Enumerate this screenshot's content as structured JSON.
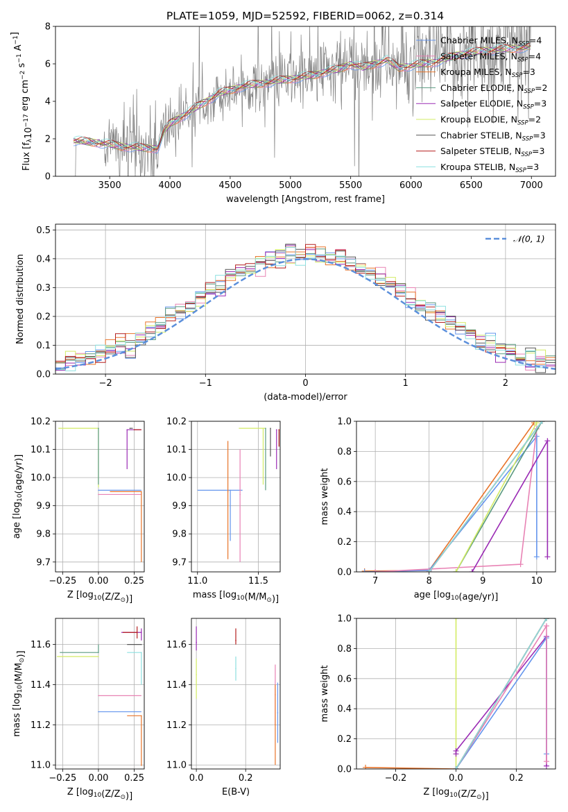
{
  "figure_title": "PLATE=1059, MJD=52592, FIBERID=0062, z=0.314",
  "legend_sub": "SSP",
  "colors": {
    "Chabrier MILES": "#6495ED",
    "Salpeter MILES": "#E882B4",
    "Kroupa MILES": "#E8742A",
    "Chabrier ELODIE": "#5A9A80",
    "Salpeter ELODIE": "#9A2AB4",
    "Kroupa ELODIE": "#D2EB64",
    "Chabrier STELIB": "#555555",
    "Salpeter STELIB": "#B41E1E",
    "Kroupa STELIB": "#8CE0E0",
    "gaussian": "#5B8FDB"
  },
  "chart_data": [
    {
      "id": "spectrum",
      "type": "line",
      "title": "PLATE=1059, MJD=52592, FIBERID=0062, z=0.314",
      "xlabel": "wavelength [Angstrom, rest frame]",
      "ylabel_parts": [
        "Flux [f",
        "λ",
        "10",
        "−17",
        " erg cm",
        "−2",
        " s",
        "−1",
        " A",
        "−1",
        "]"
      ],
      "xlim": [
        3050,
        7200
      ],
      "ylim": [
        0,
        8
      ],
      "xticks": [
        3500,
        4000,
        4500,
        5000,
        5500,
        6000,
        6500,
        7000
      ],
      "yticks": [
        0,
        2,
        4,
        6,
        8
      ],
      "grid": false,
      "legend_position": "top-right",
      "series": [
        {
          "name": "Chabrier MILES",
          "nssp": "4"
        },
        {
          "name": "Salpeter MILES",
          "nssp": "4"
        },
        {
          "name": "Kroupa MILES",
          "nssp": "3"
        },
        {
          "name": "Chabrier ELODIE",
          "nssp": "2"
        },
        {
          "name": "Salpeter ELODIE",
          "nssp": "3"
        },
        {
          "name": "Kroupa ELODIE",
          "nssp": "2"
        },
        {
          "name": "Chabrier STELIB",
          "nssp": "3"
        },
        {
          "name": "Salpeter STELIB",
          "nssp": "3"
        },
        {
          "name": "Kroupa STELIB",
          "nssp": "3"
        }
      ],
      "model_anchor_points": {
        "x": [
          3200,
          3400,
          3600,
          3800,
          3900,
          3950,
          4000,
          4100,
          4200,
          4300,
          4400,
          4500,
          4600,
          4700,
          4800,
          4900,
          5000,
          5100,
          5200,
          5300,
          5400,
          5500,
          5600,
          5700,
          5800,
          5900,
          6000,
          6100,
          6200,
          6300,
          6400,
          6500,
          6600,
          6800,
          7000
        ],
        "y": [
          1.9,
          1.8,
          1.6,
          1.5,
          1.5,
          2.4,
          2.8,
          3.2,
          3.6,
          4.0,
          4.4,
          4.6,
          4.8,
          4.9,
          5.0,
          5.1,
          5.2,
          5.3,
          5.4,
          5.6,
          5.7,
          6.0,
          5.8,
          6.0,
          6.2,
          5.8,
          5.9,
          6.0,
          6.1,
          6.3,
          6.5,
          6.6,
          6.7,
          6.8,
          6.9
        ]
      }
    },
    {
      "id": "residuals",
      "type": "line",
      "xlabel": "(data-model)/error",
      "ylabel": "Normed distribution",
      "xlim": [
        -2.5,
        2.5
      ],
      "ylim": [
        0,
        0.52
      ],
      "xticks": [
        -2,
        -1,
        0,
        1,
        2
      ],
      "yticks": [
        0.0,
        0.1,
        0.2,
        0.3,
        0.4,
        0.5
      ],
      "grid": true,
      "legend_position": "top-right",
      "legend": "𝒩(0, 1)",
      "bin_width": 0.1
    },
    {
      "id": "age-vs-Z",
      "type": "scatter",
      "xlabel_parts": [
        "Z [log",
        "10",
        "(Z/Z",
        "⊙",
        ")]"
      ],
      "ylabel_parts": [
        "age  [log",
        "10",
        "(age/yr)]"
      ],
      "xlim": [
        -0.3,
        0.32
      ],
      "ylim": [
        9.665,
        10.2
      ],
      "xticks": [
        -0.25,
        0.0,
        0.25
      ],
      "yticks": [
        9.7,
        9.8,
        9.9,
        10.0,
        10.1,
        10.2
      ],
      "grid": true,
      "points": [
        {
          "series": "Kroupa ELODIE",
          "x": 0.0,
          "y": 10.175,
          "xerr": [
            0.28,
            0.0
          ],
          "yerr": [
            0.21,
            0.0
          ]
        },
        {
          "series": "Chabrier ELODIE",
          "x": 0.0,
          "y": 10.175,
          "xerr": [
            0.0,
            0.0
          ],
          "yerr": [
            0.2,
            0.0
          ]
        },
        {
          "series": "Chabrier STELIB",
          "x": 0.22,
          "y": 10.175,
          "xerr": [
            0.0,
            0.02
          ],
          "yerr": [
            0.0,
            0.0
          ]
        },
        {
          "series": "Salpeter ELODIE",
          "x": 0.2,
          "y": 10.17,
          "xerr": [
            0.0,
            0.1
          ],
          "yerr": [
            0.14,
            0.0
          ]
        },
        {
          "series": "Salpeter STELIB",
          "x": 0.25,
          "y": 10.17,
          "xerr": [
            0.0,
            0.05
          ],
          "yerr": [
            0.0,
            0.0
          ]
        },
        {
          "series": "Chabrier MILES",
          "x": 0.0,
          "y": 9.955,
          "xerr": [
            0.0,
            0.3
          ],
          "yerr": [
            0.0,
            0.0
          ]
        },
        {
          "series": "Salpeter MILES",
          "x": 0.0,
          "y": 9.94,
          "xerr": [
            0.0,
            0.3
          ],
          "yerr": [
            0.0,
            0.0
          ]
        },
        {
          "series": "Kroupa MILES",
          "x": 0.3,
          "y": 9.95,
          "xerr": [
            0.22,
            0.0
          ],
          "yerr": [
            0.25,
            0.0
          ]
        }
      ]
    },
    {
      "id": "age-vs-mass",
      "type": "scatter",
      "xlabel_parts": [
        "mass [log",
        "10",
        "(M/M",
        "⊙",
        ")]"
      ],
      "xlim": [
        10.95,
        11.68
      ],
      "ylim": [
        9.665,
        10.2
      ],
      "xticks": [
        11.0,
        11.5
      ],
      "yticks": [
        9.7,
        9.8,
        9.9,
        10.0,
        10.1,
        10.2
      ],
      "grid": true,
      "points": [
        {
          "series": "Chabrier MILES",
          "x": 11.27,
          "y": 9.955,
          "xerr": [
            0.27,
            0.1
          ],
          "yerr": [
            0.18,
            0.0
          ]
        },
        {
          "series": "Salpeter MILES",
          "x": 11.35,
          "y": 9.94,
          "xerr": [
            0.0,
            0.0
          ],
          "yerr": [
            0.24,
            0.16
          ]
        },
        {
          "series": "Kroupa MILES",
          "x": 11.25,
          "y": 9.95,
          "xerr": [
            0.0,
            0.0
          ],
          "yerr": [
            0.24,
            0.18
          ]
        },
        {
          "series": "Kroupa ELODIE",
          "x": 11.54,
          "y": 10.175,
          "xerr": [
            0.2,
            0.02
          ],
          "yerr": [
            0.2,
            0.0
          ]
        },
        {
          "series": "Chabrier ELODIE",
          "x": 11.56,
          "y": 10.175,
          "xerr": [
            0.0,
            0.0
          ],
          "yerr": [
            0.22,
            0.0
          ]
        },
        {
          "series": "Salpeter ELODIE",
          "x": 11.65,
          "y": 10.17,
          "xerr": [
            0.0,
            0.0
          ],
          "yerr": [
            0.14,
            0.0
          ]
        },
        {
          "series": "Chabrier STELIB",
          "x": 11.6,
          "y": 10.175,
          "xerr": [
            0.0,
            0.0
          ],
          "yerr": [
            0.1,
            0.0
          ]
        },
        {
          "series": "Salpeter STELIB",
          "x": 11.67,
          "y": 10.17,
          "xerr": [
            0.0,
            0.0
          ],
          "yerr": [
            0.06,
            0.0
          ]
        }
      ]
    },
    {
      "id": "weight-vs-age",
      "type": "line",
      "xlabel_parts": [
        "age  [log",
        "10",
        "(age/yr)]"
      ],
      "ylabel": "mass weight",
      "xlim": [
        6.65,
        10.35
      ],
      "ylim": [
        0,
        1
      ],
      "xticks": [
        7,
        8,
        9,
        10
      ],
      "yticks": [
        0.0,
        0.2,
        0.4,
        0.6,
        0.8,
        1.0
      ],
      "grid": true,
      "series": [
        {
          "name": "Kroupa MILES",
          "x": [
            6.8,
            8.0,
            9.95
          ],
          "y": [
            0.005,
            0.01,
            0.99
          ]
        },
        {
          "name": "Chabrier MILES",
          "x": [
            6.8,
            8.0,
            10.0,
            10.0
          ],
          "y": [
            0.0,
            0.01,
            0.9,
            0.1
          ]
        },
        {
          "name": "Salpeter MILES",
          "x": [
            7.0,
            9.7,
            10.0
          ],
          "y": [
            0.0,
            0.05,
            0.95
          ]
        },
        {
          "name": "Chabrier ELODIE",
          "x": [
            8.5,
            10.1
          ],
          "y": [
            0.0,
            1.0
          ]
        },
        {
          "name": "Kroupa ELODIE",
          "x": [
            8.5,
            10.0
          ],
          "y": [
            0.0,
            0.99
          ]
        },
        {
          "name": "Salpeter ELODIE",
          "x": [
            8.8,
            10.2,
            10.2
          ],
          "y": [
            0.0,
            0.87,
            0.1
          ]
        },
        {
          "name": "Chabrier STELIB",
          "x": [
            8.0,
            10.1
          ],
          "y": [
            0.0,
            1.0
          ]
        },
        {
          "name": "Salpeter STELIB",
          "x": [
            8.0,
            10.1
          ],
          "y": [
            0.0,
            1.0
          ]
        },
        {
          "name": "Kroupa STELIB",
          "x": [
            8.0,
            10.1
          ],
          "y": [
            0.0,
            1.0
          ]
        }
      ]
    },
    {
      "id": "mass-vs-Z",
      "type": "scatter",
      "xlabel_parts": [
        "Z [log",
        "10",
        "(Z/Z",
        "⊙",
        ")]"
      ],
      "ylabel_parts": [
        "mass [log",
        "10",
        "(M/M",
        "⊙",
        ")]"
      ],
      "xlim": [
        -0.3,
        0.32
      ],
      "ylim": [
        10.98,
        11.73
      ],
      "xticks": [
        -0.25,
        0.0,
        0.25
      ],
      "yticks": [
        11.0,
        11.2,
        11.4,
        11.6
      ],
      "grid": true,
      "points": [
        {
          "series": "Chabrier MILES",
          "x": 0.0,
          "y": 11.265,
          "xerr": [
            0.0,
            0.3
          ],
          "yerr": [
            0.0,
            0.0
          ]
        },
        {
          "series": "Salpeter MILES",
          "x": 0.0,
          "y": 11.345,
          "xerr": [
            0.0,
            0.3
          ],
          "yerr": [
            0.0,
            0.0
          ]
        },
        {
          "series": "Kroupa MILES",
          "x": 0.3,
          "y": 11.245,
          "xerr": [
            0.1,
            0.0
          ],
          "yerr": [
            0.25,
            0.0
          ]
        },
        {
          "series": "Chabrier ELODIE",
          "x": 0.0,
          "y": 11.56,
          "xerr": [
            0.27,
            0.0
          ],
          "yerr": [
            0.0,
            0.04
          ]
        },
        {
          "series": "Kroupa ELODIE",
          "x": 0.0,
          "y": 11.54,
          "xerr": [
            0.29,
            0.0
          ],
          "yerr": [
            0.0,
            0.0
          ]
        },
        {
          "series": "Salpeter ELODIE",
          "x": 0.3,
          "y": 11.66,
          "xerr": [
            0.14,
            0.0
          ],
          "yerr": [
            0.04,
            0.02
          ]
        },
        {
          "series": "Chabrier STELIB",
          "x": 0.3,
          "y": 11.6,
          "xerr": [
            0.1,
            0.0
          ],
          "yerr": [
            0.0,
            0.0
          ]
        },
        {
          "series": "Salpeter STELIB",
          "x": 0.27,
          "y": 11.66,
          "xerr": [
            0.1,
            0.0
          ],
          "yerr": [
            0.03,
            0.03
          ]
        },
        {
          "series": "Kroupa STELIB",
          "x": 0.3,
          "y": 11.56,
          "xerr": [
            0.1,
            0.0
          ],
          "yerr": [
            0.16,
            0.0
          ]
        }
      ]
    },
    {
      "id": "mass-vs-EBV",
      "type": "scatter",
      "xlabel": "E(B-V)",
      "xlim": [
        -0.02,
        0.34
      ],
      "ylim": [
        10.98,
        11.73
      ],
      "xticks": [
        0.0,
        0.2
      ],
      "yticks": [
        11.0,
        11.2,
        11.4,
        11.6
      ],
      "grid": true,
      "points": [
        {
          "series": "Salpeter ELODIE",
          "x": 0.0,
          "y": 11.61,
          "xerr": [
            0.0,
            0.0
          ],
          "yerr": [
            0.04,
            0.08
          ]
        },
        {
          "series": "Kroupa ELODIE",
          "x": 0.0,
          "y": 11.45,
          "xerr": [
            0.0,
            0.0
          ],
          "yerr": [
            0.12,
            0.08
          ]
        },
        {
          "series": "Salpeter STELIB",
          "x": 0.16,
          "y": 11.62,
          "xerr": [
            0.0,
            0.0
          ],
          "yerr": [
            0.02,
            0.06
          ]
        },
        {
          "series": "Kroupa STELIB",
          "x": 0.16,
          "y": 11.48,
          "xerr": [
            0.0,
            0.0
          ],
          "yerr": [
            0.06,
            0.06
          ]
        },
        {
          "series": "Salpeter MILES",
          "x": 0.32,
          "y": 11.35,
          "xerr": [
            0.0,
            0.0
          ],
          "yerr": [
            0.15,
            0.15
          ]
        },
        {
          "series": "Kroupa MILES",
          "x": 0.32,
          "y": 11.2,
          "xerr": [
            0.0,
            0.0
          ],
          "yerr": [
            0.2,
            0.2
          ]
        },
        {
          "series": "Chabrier MILES",
          "x": 0.33,
          "y": 11.26,
          "xerr": [
            0.0,
            0.0
          ],
          "yerr": [
            0.15,
            0.15
          ]
        }
      ]
    },
    {
      "id": "weight-vs-Z",
      "type": "line",
      "xlabel_parts": [
        "Z [log",
        "10",
        "(Z/Z",
        "⊙",
        ")]"
      ],
      "ylabel": "mass weight",
      "xlim": [
        -0.33,
        0.33
      ],
      "ylim": [
        0,
        1
      ],
      "xticks": [
        -0.2,
        0.0,
        0.2
      ],
      "yticks": [
        0.0,
        0.2,
        0.4,
        0.6,
        0.8,
        1.0
      ],
      "grid": true,
      "series": [
        {
          "name": "Kroupa ELODIE",
          "x": [
            0.0,
            0.0
          ],
          "y": [
            0.0,
            1.0
          ]
        },
        {
          "name": "Kroupa MILES",
          "x": [
            -0.3,
            0.0
          ],
          "y": [
            0.01,
            0.0
          ]
        },
        {
          "name": "Salpeter ELODIE",
          "x": [
            0.0,
            0.0,
            0.3,
            0.3
          ],
          "y": [
            0.1,
            0.12,
            0.88,
            0.02
          ]
        },
        {
          "name": "Chabrier MILES",
          "x": [
            0.0,
            0.3,
            0.3
          ],
          "y": [
            0.0,
            0.87,
            0.1
          ]
        },
        {
          "name": "Salpeter MILES",
          "x": [
            0.0,
            0.3,
            0.3
          ],
          "y": [
            0.0,
            0.95,
            0.05
          ]
        },
        {
          "name": "Chabrier ELODIE",
          "x": [
            0.0,
            0.3
          ],
          "y": [
            0.0,
            1.0
          ]
        },
        {
          "name": "Chabrier STELIB",
          "x": [
            0.0,
            0.3
          ],
          "y": [
            0.0,
            1.0
          ]
        },
        {
          "name": "Salpeter STELIB",
          "x": [
            0.0,
            0.3
          ],
          "y": [
            0.0,
            1.0
          ]
        },
        {
          "name": "Kroupa STELIB",
          "x": [
            0.0,
            0.3
          ],
          "y": [
            0.0,
            1.0
          ]
        }
      ]
    }
  ]
}
